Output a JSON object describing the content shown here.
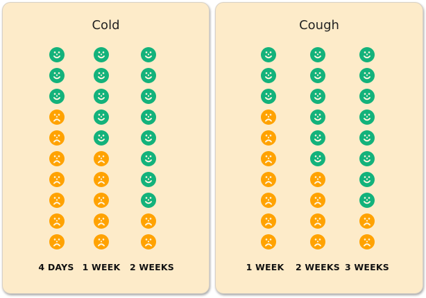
{
  "colors": {
    "happy": "#13b27b",
    "sad": "#ffa200",
    "face_feature": "#fff6e0",
    "panel_bg": "#fdebc9"
  },
  "chart_data": [
    {
      "type": "pictograph",
      "title": "Cold",
      "categories": [
        "4 DAYS",
        "1 WEEK",
        "2 WEEKS"
      ],
      "icons_per_column": 10,
      "series": [
        {
          "name": "happy (recovered)",
          "values": [
            3,
            5,
            8
          ]
        },
        {
          "name": "sad (still sick)",
          "values": [
            7,
            5,
            2
          ]
        }
      ]
    },
    {
      "type": "pictograph",
      "title": "Cough",
      "categories": [
        "1 WEEK",
        "2 WEEKS",
        "3 WEEKS"
      ],
      "icons_per_column": 10,
      "series": [
        {
          "name": "happy (recovered)",
          "values": [
            3,
            6,
            8
          ]
        },
        {
          "name": "sad (still sick)",
          "values": [
            7,
            4,
            2
          ]
        }
      ]
    }
  ],
  "panels": [
    {
      "title": "Cold",
      "labels": [
        "4 DAYS",
        "1 WEEK",
        "2 WEEKS"
      ]
    },
    {
      "title": "Cough",
      "labels": [
        "1 WEEK",
        "2 WEEKS",
        "3 WEEKS"
      ]
    }
  ]
}
